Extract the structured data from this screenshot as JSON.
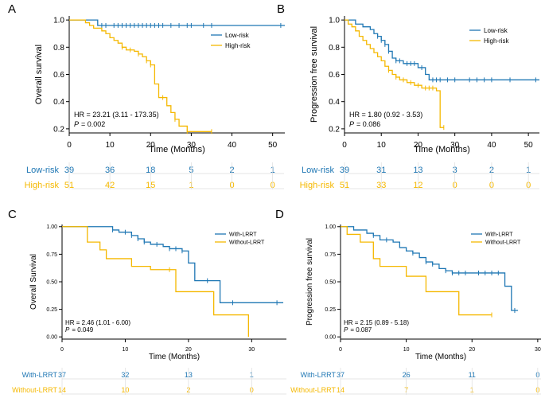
{
  "colors": {
    "blue": "#1f77b4",
    "orange": "#f5b800",
    "axis": "#000000",
    "grid": "#dddddd"
  },
  "chart_data": [
    {
      "panel": "A",
      "type": "line",
      "title": "",
      "ylabel": "Overall survival",
      "xlabel": "Time (Months)",
      "xlim": [
        0,
        53
      ],
      "ylim": [
        0.17,
        1.03
      ],
      "xticks": [
        "0",
        "10",
        "20",
        "30",
        "40",
        "50"
      ],
      "xtick_values": [
        0,
        10,
        20,
        30,
        40,
        50
      ],
      "yticks": [
        "0.2",
        "0.4",
        "0.6",
        "0.8",
        "1.0"
      ],
      "ytick_values": [
        0.2,
        0.4,
        0.6,
        0.8,
        1.0
      ],
      "legend": [
        "Low-risk",
        "High-risk"
      ],
      "legend_position": "top-right",
      "stats": {
        "hr": "HR = 23.21  (3.11 - 173.35)",
        "p_label": "P",
        "p_value": "= 0.002"
      },
      "series": [
        {
          "name": "Low-risk",
          "color": "blue",
          "steps": [
            [
              0,
              1.0
            ],
            [
              7,
              0.96
            ],
            [
              53,
              0.96
            ]
          ],
          "censor_x": [
            8,
            9,
            11,
            12,
            13,
            14,
            15,
            16,
            17,
            18,
            19,
            20,
            21,
            22,
            23,
            25,
            27,
            29,
            30,
            33,
            35,
            52
          ]
        },
        {
          "name": "High-risk",
          "color": "orange",
          "steps": [
            [
              0,
              1.0
            ],
            [
              4,
              0.98
            ],
            [
              5,
              0.96
            ],
            [
              6,
              0.94
            ],
            [
              8,
              0.92
            ],
            [
              9,
              0.9
            ],
            [
              10,
              0.87
            ],
            [
              11,
              0.85
            ],
            [
              12,
              0.83
            ],
            [
              13,
              0.8
            ],
            [
              14,
              0.78
            ],
            [
              16,
              0.77
            ],
            [
              17,
              0.75
            ],
            [
              18,
              0.73
            ],
            [
              19,
              0.7
            ],
            [
              20,
              0.67
            ],
            [
              21,
              0.53
            ],
            [
              22,
              0.43
            ],
            [
              24,
              0.37
            ],
            [
              25,
              0.32
            ],
            [
              26,
              0.27
            ],
            [
              27,
              0.22
            ],
            [
              29,
              0.18
            ],
            [
              35,
              0.18
            ]
          ],
          "censor_x": [
            13,
            15,
            17,
            19,
            20,
            23,
            26,
            29,
            35
          ]
        }
      ],
      "risk_table": {
        "rows": [
          {
            "label": "Low-risk",
            "color": "blue",
            "values": [
              "39",
              "36",
              "18",
              "5",
              "2",
              "1"
            ]
          },
          {
            "label": "High-risk",
            "color": "orange",
            "values": [
              "51",
              "42",
              "15",
              "1",
              "0",
              "0"
            ]
          }
        ]
      }
    },
    {
      "panel": "B",
      "type": "line",
      "title": "",
      "ylabel": "Progression free survival",
      "xlabel": "Time (Months)",
      "xlim": [
        0,
        53
      ],
      "ylim": [
        0.17,
        1.03
      ],
      "xticks": [
        "0",
        "10",
        "20",
        "30",
        "40",
        "50"
      ],
      "xtick_values": [
        0,
        10,
        20,
        30,
        40,
        50
      ],
      "yticks": [
        "0.2",
        "0.4",
        "0.6",
        "0.8",
        "1.0"
      ],
      "ytick_values": [
        0.2,
        0.4,
        0.6,
        0.8,
        1.0
      ],
      "legend": [
        "Low-risk",
        "High-risk"
      ],
      "legend_position": "top-right",
      "stats": {
        "hr": "HR = 1.80  (0.92  - 3.53)",
        "p_label": "P",
        "p_value": "= 0.086"
      },
      "series": [
        {
          "name": "Low-risk",
          "color": "blue",
          "steps": [
            [
              0,
              1.0
            ],
            [
              3,
              0.97
            ],
            [
              5,
              0.95
            ],
            [
              7,
              0.93
            ],
            [
              8,
              0.9
            ],
            [
              9,
              0.88
            ],
            [
              10,
              0.85
            ],
            [
              11,
              0.82
            ],
            [
              12,
              0.77
            ],
            [
              13,
              0.72
            ],
            [
              14,
              0.7
            ],
            [
              16,
              0.68
            ],
            [
              20,
              0.65
            ],
            [
              22,
              0.6
            ],
            [
              23,
              0.56
            ],
            [
              53,
              0.56
            ]
          ],
          "censor_x": [
            9,
            10,
            11,
            12,
            14,
            15,
            17,
            18,
            19,
            21,
            24,
            25,
            26,
            28,
            30,
            34,
            36,
            38,
            40,
            45,
            52
          ]
        },
        {
          "name": "High-risk",
          "color": "orange",
          "steps": [
            [
              0,
              1.0
            ],
            [
              1,
              0.97
            ],
            [
              2,
              0.95
            ],
            [
              3,
              0.92
            ],
            [
              4,
              0.88
            ],
            [
              5,
              0.85
            ],
            [
              6,
              0.82
            ],
            [
              7,
              0.79
            ],
            [
              8,
              0.76
            ],
            [
              9,
              0.73
            ],
            [
              10,
              0.7
            ],
            [
              11,
              0.66
            ],
            [
              12,
              0.63
            ],
            [
              13,
              0.6
            ],
            [
              14,
              0.58
            ],
            [
              15,
              0.56
            ],
            [
              17,
              0.54
            ],
            [
              19,
              0.52
            ],
            [
              21,
              0.5
            ],
            [
              25,
              0.48
            ],
            [
              26,
              0.21
            ],
            [
              27,
              0.21
            ]
          ],
          "censor_x": [
            12,
            14,
            16,
            18,
            20,
            22,
            23,
            24,
            27
          ]
        }
      ],
      "risk_table": {
        "rows": [
          {
            "label": "Low-risk",
            "color": "blue",
            "values": [
              "39",
              "31",
              "13",
              "3",
              "2",
              "1"
            ]
          },
          {
            "label": "High-risk",
            "color": "orange",
            "values": [
              "51",
              "33",
              "12",
              "0",
              "0",
              "0"
            ]
          }
        ]
      }
    },
    {
      "panel": "C",
      "type": "line",
      "title": "",
      "ylabel": "Overall Survival",
      "xlabel": "Time (Months)",
      "xlim": [
        0,
        35.5
      ],
      "ylim": [
        -0.02,
        1.02
      ],
      "xticks": [
        "0",
        "10",
        "20",
        "30"
      ],
      "xtick_values": [
        0,
        10,
        20,
        30
      ],
      "yticks": [
        "0.00",
        "0.25",
        "0.50",
        "0.75",
        "1.00"
      ],
      "ytick_values": [
        0,
        0.25,
        0.5,
        0.75,
        1.0
      ],
      "legend": [
        "With-LRRT",
        "Without-LRRT"
      ],
      "legend_position": "top-right",
      "stats": {
        "hr": "HR = 2.46 (1.01 - 6.00)",
        "p_label": "P",
        "p_value": "= 0.049"
      },
      "series": [
        {
          "name": "With-LRRT",
          "color": "blue",
          "steps": [
            [
              0,
              1.0
            ],
            [
              8,
              0.97
            ],
            [
              9,
              0.95
            ],
            [
              11,
              0.92
            ],
            [
              12,
              0.89
            ],
            [
              13,
              0.86
            ],
            [
              14,
              0.84
            ],
            [
              16,
              0.82
            ],
            [
              17,
              0.8
            ],
            [
              19,
              0.78
            ],
            [
              20,
              0.67
            ],
            [
              21,
              0.51
            ],
            [
              25,
              0.31
            ],
            [
              35,
              0.31
            ]
          ],
          "censor_x": [
            8,
            10,
            11,
            12,
            13,
            15,
            17,
            18,
            19,
            23,
            27,
            34
          ]
        },
        {
          "name": "Without-LRRT",
          "color": "orange",
          "steps": [
            [
              0,
              1.0
            ],
            [
              4,
              0.86
            ],
            [
              6,
              0.79
            ],
            [
              7,
              0.71
            ],
            [
              11,
              0.64
            ],
            [
              14,
              0.61
            ],
            [
              18,
              0.41
            ],
            [
              24,
              0.2
            ],
            [
              29.5,
              0.0
            ]
          ],
          "censor_x": [
            17
          ]
        }
      ],
      "risk_table": {
        "rows": [
          {
            "label": "With-LRRT",
            "color": "blue",
            "values": [
              "37",
              "32",
              "13",
              "1"
            ]
          },
          {
            "label": "Without-LRRT",
            "color": "orange",
            "values": [
              "14",
              "10",
              "2",
              "0"
            ]
          }
        ]
      }
    },
    {
      "panel": "D",
      "type": "line",
      "title": "",
      "ylabel": "Progression free survival",
      "xlabel": "Time (Months)",
      "xlim": [
        0,
        30.5
      ],
      "ylim": [
        -0.02,
        1.02
      ],
      "xticks": [
        "0",
        "10",
        "20",
        "30"
      ],
      "xtick_values": [
        0,
        10,
        20,
        30
      ],
      "yticks": [
        "0.00",
        "0.25",
        "0.50",
        "0.75",
        "1.00"
      ],
      "ytick_values": [
        0,
        0.25,
        0.5,
        0.75,
        1.0
      ],
      "legend": [
        "With-LRRT",
        "Without-LRRT"
      ],
      "legend_position": "top-right",
      "stats": {
        "hr": "HR = 2.15 (0.89 - 5.18)",
        "p_label": "P",
        "p_value": "= 0.087"
      },
      "series": [
        {
          "name": "With-LRRT",
          "color": "blue",
          "steps": [
            [
              0,
              1.0
            ],
            [
              2,
              0.97
            ],
            [
              4,
              0.94
            ],
            [
              5,
              0.92
            ],
            [
              6,
              0.88
            ],
            [
              8,
              0.86
            ],
            [
              9,
              0.81
            ],
            [
              10,
              0.78
            ],
            [
              11,
              0.76
            ],
            [
              12,
              0.72
            ],
            [
              13,
              0.68
            ],
            [
              14,
              0.66
            ],
            [
              15,
              0.62
            ],
            [
              16,
              0.6
            ],
            [
              17,
              0.58
            ],
            [
              25,
              0.46
            ],
            [
              26,
              0.24
            ],
            [
              27,
              0.24
            ]
          ],
          "censor_x": [
            5,
            7,
            11,
            13,
            14,
            16,
            17,
            18,
            19,
            21,
            22,
            23,
            24,
            26.5
          ]
        },
        {
          "name": "Without-LRRT",
          "color": "orange",
          "steps": [
            [
              0,
              1.0
            ],
            [
              1,
              0.93
            ],
            [
              3,
              0.86
            ],
            [
              5,
              0.71
            ],
            [
              6,
              0.64
            ],
            [
              10,
              0.55
            ],
            [
              13,
              0.41
            ],
            [
              18,
              0.2
            ],
            [
              23,
              0.2
            ]
          ],
          "censor_x": [
            23
          ]
        }
      ],
      "risk_table": {
        "rows": [
          {
            "label": "With-LRRT",
            "color": "blue",
            "values": [
              "37",
              "26",
              "11",
              "0"
            ]
          },
          {
            "label": "Without-LRRT",
            "color": "orange",
            "values": [
              "14",
              "7",
              "1",
              "0"
            ]
          }
        ]
      }
    }
  ]
}
